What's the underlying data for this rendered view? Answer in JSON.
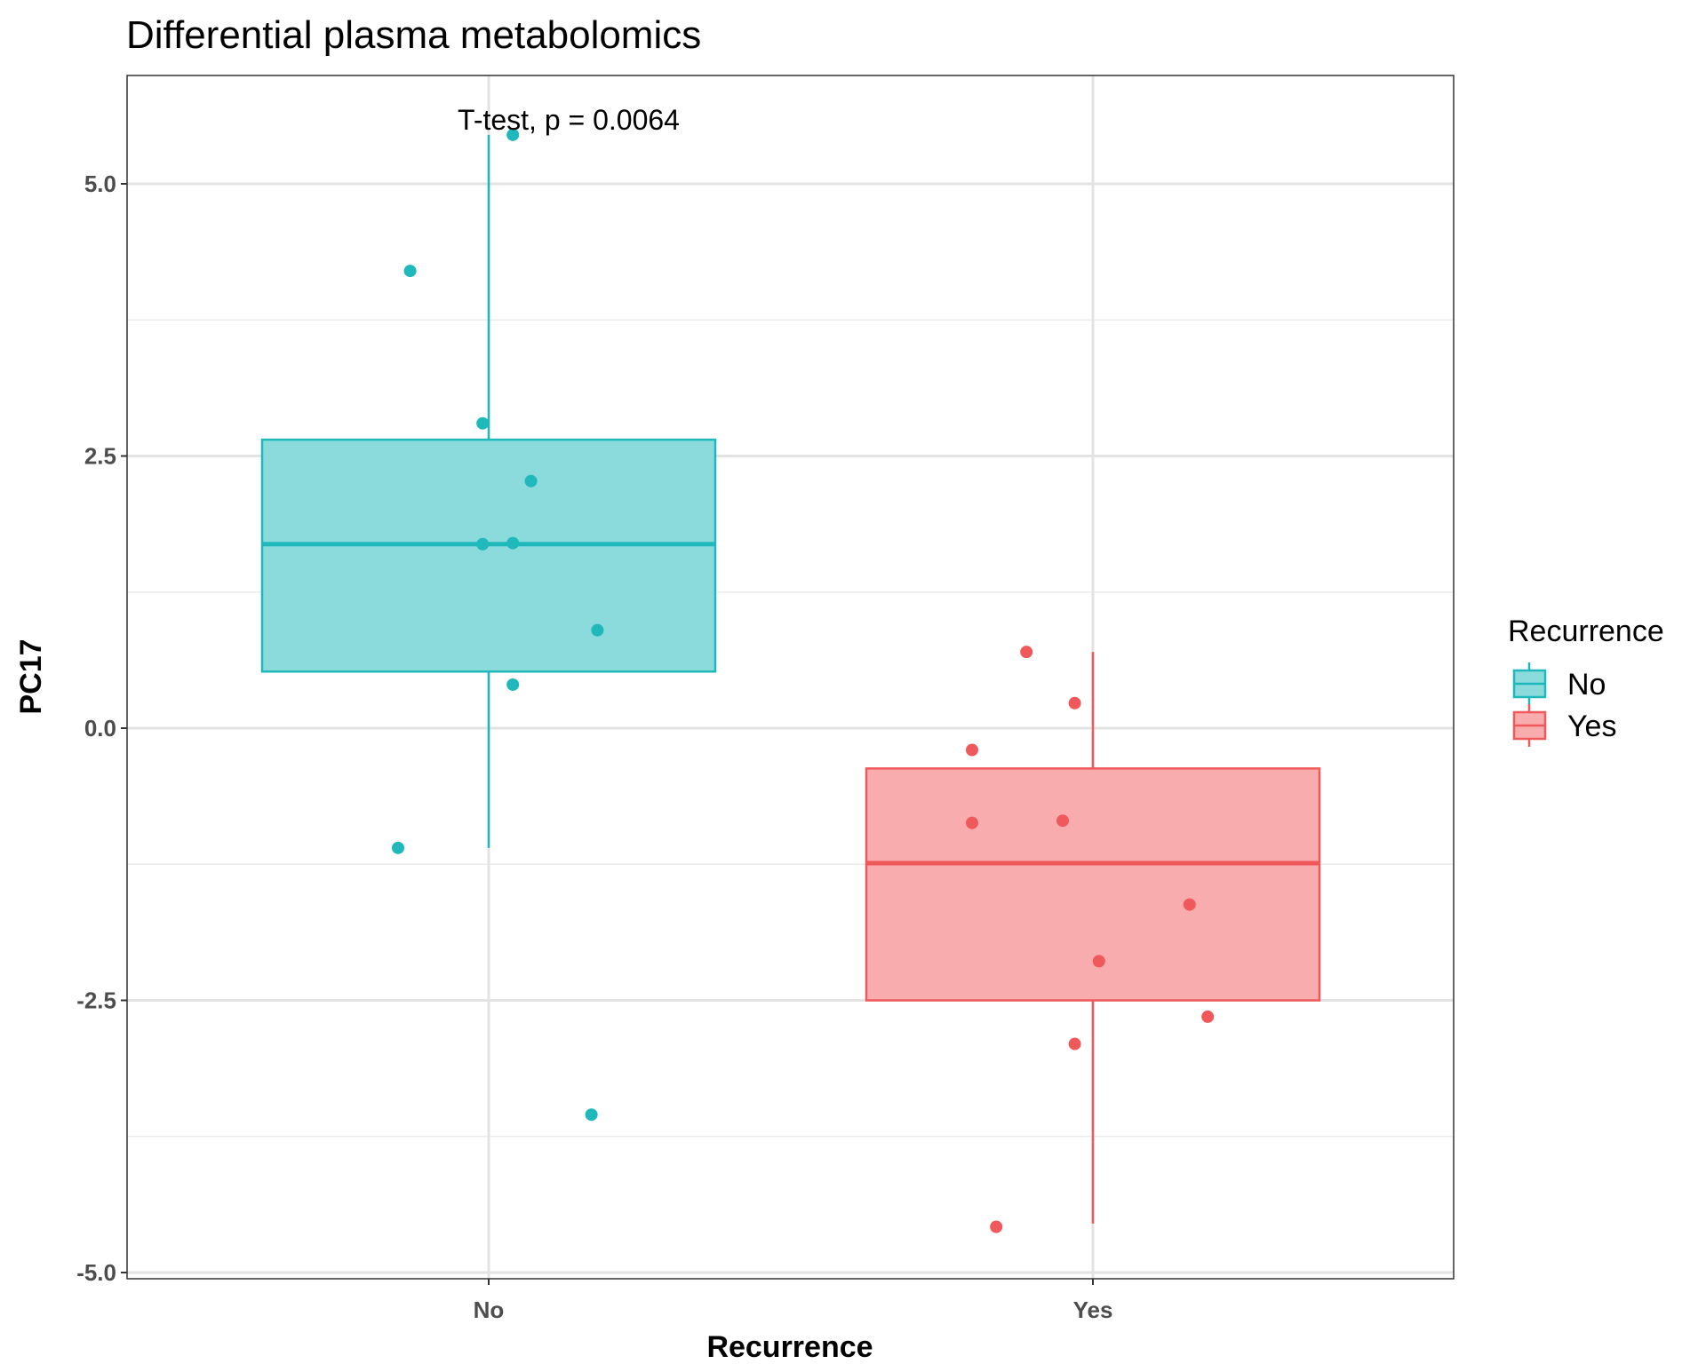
{
  "chart_data": {
    "type": "box",
    "title": "Differential plasma metabolomics",
    "xlabel": "Recurrence",
    "ylabel": "PC17",
    "ylim": [
      -5.05,
      6.0
    ],
    "yticks": [
      -5.0,
      -2.5,
      0.0,
      2.5,
      5.0
    ],
    "ytick_labels": [
      "-5.0",
      "-2.5",
      "0.0",
      "2.5",
      "5.0"
    ],
    "categories": [
      "No",
      "Yes"
    ],
    "annotation": "T-test, p = 0.0064",
    "grid": true,
    "legend": {
      "title": "Recurrence",
      "position": "right",
      "entries": [
        "No",
        "Yes"
      ]
    },
    "series": [
      {
        "name": "No",
        "color": "#1fb8bb",
        "fill": "#8bdadc",
        "box": {
          "whisker_low": -1.1,
          "q1": 0.52,
          "median": 1.69,
          "q3": 2.65,
          "whisker_high": 5.45
        },
        "points": [
          {
            "dx": 0.04,
            "y": 5.45
          },
          {
            "dx": -0.13,
            "y": 4.2
          },
          {
            "dx": -0.01,
            "y": 2.8
          },
          {
            "dx": 0.07,
            "y": 2.27
          },
          {
            "dx": -0.01,
            "y": 1.69
          },
          {
            "dx": 0.04,
            "y": 1.7
          },
          {
            "dx": 0.18,
            "y": 0.9
          },
          {
            "dx": 0.04,
            "y": 0.4
          },
          {
            "dx": -0.15,
            "y": -1.1
          },
          {
            "dx": 0.17,
            "y": -3.55
          }
        ]
      },
      {
        "name": "Yes",
        "color": "#f0595b",
        "fill": "#f8acad",
        "box": {
          "whisker_low": -4.55,
          "q1": -2.5,
          "median": -1.24,
          "q3": -0.37,
          "whisker_high": 0.7
        },
        "points": [
          {
            "dx": -0.11,
            "y": 0.7
          },
          {
            "dx": -0.03,
            "y": 0.23
          },
          {
            "dx": -0.2,
            "y": -0.2
          },
          {
            "dx": -0.2,
            "y": -0.87
          },
          {
            "dx": -0.05,
            "y": -0.85
          },
          {
            "dx": 0.16,
            "y": -1.62
          },
          {
            "dx": 0.01,
            "y": -2.14
          },
          {
            "dx": 0.19,
            "y": -2.65
          },
          {
            "dx": -0.03,
            "y": -2.9
          },
          {
            "dx": -0.16,
            "y": -4.58
          }
        ]
      }
    ]
  }
}
